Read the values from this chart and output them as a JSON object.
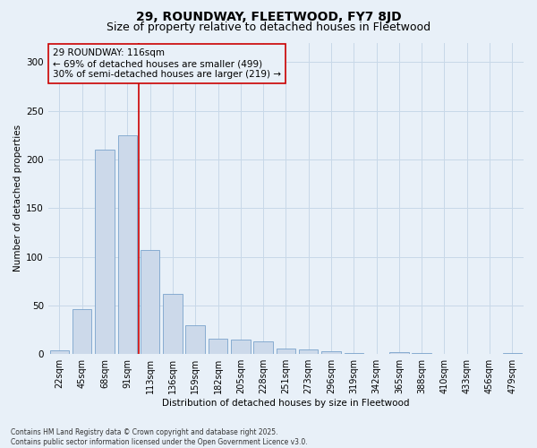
{
  "title": "29, ROUNDWAY, FLEETWOOD, FY7 8JD",
  "subtitle": "Size of property relative to detached houses in Fleetwood",
  "xlabel": "Distribution of detached houses by size in Fleetwood",
  "ylabel": "Number of detached properties",
  "categories": [
    "22sqm",
    "45sqm",
    "68sqm",
    "91sqm",
    "113sqm",
    "136sqm",
    "159sqm",
    "182sqm",
    "205sqm",
    "228sqm",
    "251sqm",
    "273sqm",
    "296sqm",
    "319sqm",
    "342sqm",
    "365sqm",
    "388sqm",
    "410sqm",
    "433sqm",
    "456sqm",
    "479sqm"
  ],
  "values": [
    4,
    46,
    210,
    225,
    107,
    62,
    30,
    16,
    15,
    13,
    6,
    5,
    3,
    1,
    0,
    2,
    1,
    0,
    0,
    0,
    1
  ],
  "bar_color": "#ccd9ea",
  "bar_edge_color": "#7aa3cc",
  "grid_color": "#c8d8e8",
  "background_color": "#e8f0f8",
  "annotation_text": "29 ROUNDWAY: 116sqm\n← 69% of detached houses are smaller (499)\n30% of semi-detached houses are larger (219) →",
  "vline_index": 4,
  "vline_color": "#cc0000",
  "box_edge_color": "#cc0000",
  "ylim": [
    0,
    320
  ],
  "yticks": [
    0,
    50,
    100,
    150,
    200,
    250,
    300
  ],
  "footer_line1": "Contains HM Land Registry data © Crown copyright and database right 2025.",
  "footer_line2": "Contains public sector information licensed under the Open Government Licence v3.0.",
  "title_fontsize": 10,
  "subtitle_fontsize": 9,
  "axis_label_fontsize": 7.5,
  "tick_fontsize": 7,
  "annotation_fontsize": 7.5,
  "footer_fontsize": 5.5
}
